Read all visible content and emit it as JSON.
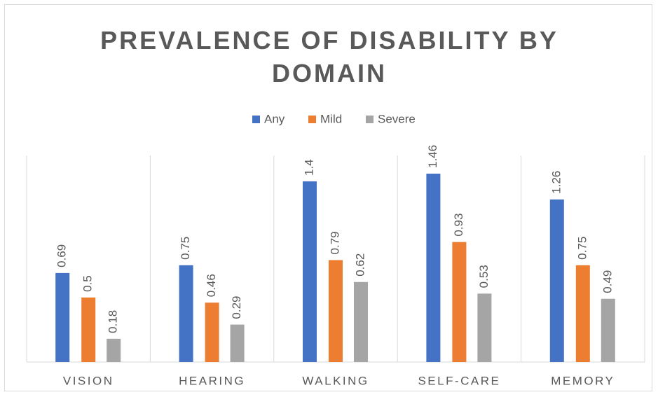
{
  "chart_data": {
    "type": "bar",
    "title": "PREVALENCE OF DISABILITY BY DOMAIN",
    "categories": [
      "VISION",
      "HEARING",
      "WALKING",
      "SELF-CARE",
      "MEMORY"
    ],
    "series": [
      {
        "name": "Any",
        "color": "#4472c4",
        "values": [
          0.69,
          0.75,
          1.4,
          1.46,
          1.26
        ]
      },
      {
        "name": "Mild",
        "color": "#ed7d31",
        "values": [
          0.5,
          0.46,
          0.79,
          0.93,
          0.75
        ]
      },
      {
        "name": "Severe",
        "color": "#a5a5a5",
        "values": [
          0.18,
          0.29,
          0.62,
          0.53,
          0.49
        ]
      }
    ],
    "legend": "top"
  }
}
